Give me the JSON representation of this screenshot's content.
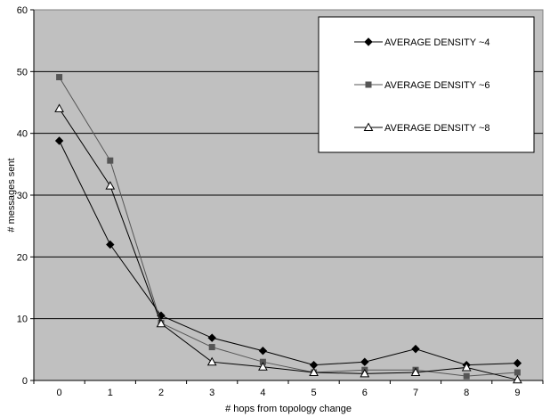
{
  "chart_data": {
    "type": "line",
    "title": "",
    "xlabel": "# hops from topology change",
    "ylabel": "# messages sent",
    "categories": [
      "0",
      "1",
      "2",
      "3",
      "4",
      "5",
      "6",
      "7",
      "8",
      "9"
    ],
    "ylim": [
      0,
      60
    ],
    "yticks": [
      "0",
      "10",
      "20",
      "30",
      "40",
      "50",
      "60"
    ],
    "grid": true,
    "plot_background": "#c0c0c0",
    "legend_position": "top-right",
    "series": [
      {
        "name": "AVERAGE DENSITY ~4",
        "marker": "diamond",
        "color": "#000000",
        "values": [
          38.8,
          22.0,
          10.5,
          6.9,
          4.8,
          2.5,
          3.0,
          5.1,
          2.5,
          2.8
        ]
      },
      {
        "name": "AVERAGE DENSITY ~6",
        "marker": "square",
        "color": "#555555",
        "values": [
          49.1,
          35.6,
          9.3,
          5.4,
          3.0,
          1.3,
          1.7,
          1.7,
          0.7,
          1.3
        ]
      },
      {
        "name": "AVERAGE DENSITY ~8",
        "marker": "triangle",
        "color": "#000000",
        "values": [
          44.0,
          31.5,
          9.2,
          3.0,
          2.2,
          1.3,
          1.1,
          1.3,
          2.1,
          0.1
        ]
      }
    ]
  }
}
